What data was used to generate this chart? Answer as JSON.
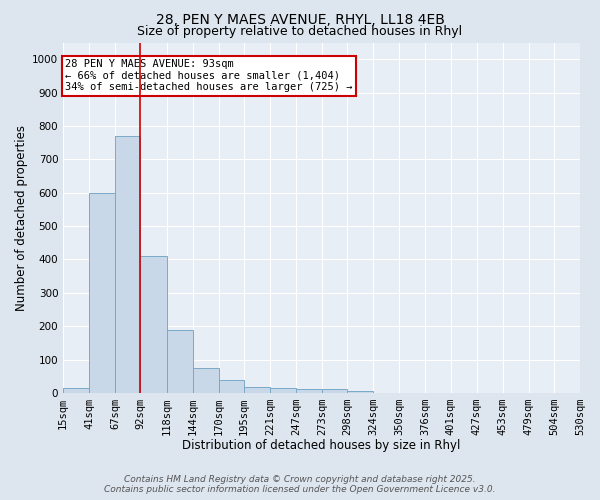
{
  "title": "28, PEN Y MAES AVENUE, RHYL, LL18 4EB",
  "subtitle": "Size of property relative to detached houses in Rhyl",
  "xlabel": "Distribution of detached houses by size in Rhyl",
  "ylabel": "Number of detached properties",
  "bin_edges": [
    15,
    41,
    67,
    92,
    118,
    144,
    170,
    195,
    221,
    247,
    273,
    298,
    324,
    350,
    376,
    401,
    427,
    453,
    479,
    504,
    530
  ],
  "bar_heights": [
    15,
    600,
    770,
    410,
    190,
    75,
    38,
    18,
    15,
    12,
    12,
    5,
    0,
    0,
    0,
    0,
    0,
    0,
    0,
    0
  ],
  "bar_color": "#c8d8e8",
  "bar_edge_color": "#7aaac8",
  "property_line_x": 92,
  "property_line_color": "#cc0000",
  "annotation_text": "28 PEN Y MAES AVENUE: 93sqm\n← 66% of detached houses are smaller (1,404)\n34% of semi-detached houses are larger (725) →",
  "annotation_box_color": "#ffffff",
  "annotation_box_edge_color": "#cc0000",
  "ylim": [
    0,
    1050
  ],
  "yticks": [
    0,
    100,
    200,
    300,
    400,
    500,
    600,
    700,
    800,
    900,
    1000
  ],
  "background_color": "#dde5ee",
  "plot_bg_color": "#e8eef5",
  "grid_color": "#ffffff",
  "footer_line1": "Contains HM Land Registry data © Crown copyright and database right 2025.",
  "footer_line2": "Contains public sector information licensed under the Open Government Licence v3.0.",
  "title_fontsize": 10,
  "subtitle_fontsize": 9,
  "axis_label_fontsize": 8.5,
  "tick_fontsize": 7.5,
  "annotation_fontsize": 7.5,
  "footer_fontsize": 6.5
}
